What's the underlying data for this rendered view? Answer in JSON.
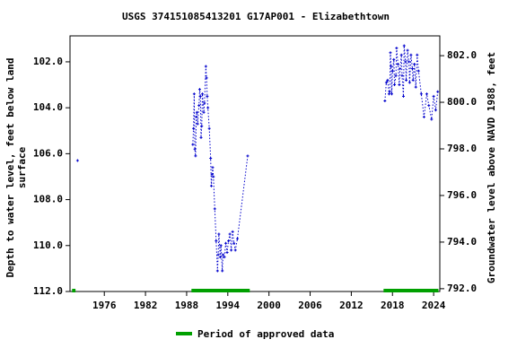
{
  "chart_data": {
    "type": "line",
    "title": "USGS 374151085413201 G17AP001 - Elizabethtown",
    "ylabel": [
      "Depth to water level, feet below land",
      "surface"
    ],
    "y2label": "Groundwater level above NAVD 1988, feet",
    "xlim": [
      1971,
      2024.9
    ],
    "xticks": [
      1976,
      1982,
      1988,
      1994,
      2000,
      2006,
      2012,
      2018,
      2024
    ],
    "ylim": [
      100.87,
      112
    ],
    "y_inverted": true,
    "yticks": [
      {
        "value": 102,
        "label": "102.0"
      },
      {
        "value": 104,
        "label": "104.0"
      },
      {
        "value": 106,
        "label": "106.0"
      },
      {
        "value": 108,
        "label": "108.0"
      },
      {
        "value": 110,
        "label": "110.0"
      },
      {
        "value": 112,
        "label": "112.0"
      }
    ],
    "y2lim": [
      791.88,
      802.85
    ],
    "y2ticks": [
      {
        "value": 792,
        "label": "792.0"
      },
      {
        "value": 794,
        "label": "794.0"
      },
      {
        "value": 796,
        "label": "796.0"
      },
      {
        "value": 798,
        "label": "798.0"
      },
      {
        "value": 800,
        "label": "800.0"
      },
      {
        "value": 802,
        "label": "802.0"
      }
    ],
    "grid": false,
    "series": [
      {
        "color": "#0000cc",
        "x": [
          1972.1,
          1980,
          1988.9,
          1989.0,
          1989.1,
          1989.2,
          1989.3,
          1989.4,
          1989.5,
          1989.6,
          1989.8,
          1989.9,
          1990.0,
          1990.1,
          1990.2,
          1990.3,
          1990.5,
          1990.6,
          1990.8,
          1990.9,
          1991.0,
          1991.1,
          1991.3,
          1991.5,
          1991.6,
          1991.7,
          1991.8,
          1991.9,
          1992.1,
          1992.3,
          1992.5,
          1992.6,
          1992.7,
          1992.9,
          1993.0,
          1993.2,
          1993.3,
          1993.5,
          1993.7,
          1993.9,
          1994.1,
          1994.3,
          1994.5,
          1994.7,
          1994.9,
          1995.1,
          1995.4,
          1996.9,
          2005,
          2016.9,
          2017.1,
          2017.3,
          2017.5,
          2017.6,
          2017.7,
          2017.8,
          2017.9,
          2018.0,
          2018.2,
          2018.3,
          2018.5,
          2018.6,
          2018.8,
          2019.0,
          2019.1,
          2019.3,
          2019.4,
          2019.6,
          2019.7,
          2019.9,
          2020.0,
          2020.2,
          2020.4,
          2020.5,
          2020.7,
          2020.9,
          2021.0,
          2021.2,
          2021.4,
          2021.6,
          2021.8,
          2022.2,
          2022.6,
          2023.0,
          2023.3,
          2023.7,
          2024.0,
          2024.3,
          2024.6
        ],
        "values": [
          106.3,
          null,
          105.6,
          104.9,
          103.4,
          105.8,
          106.1,
          104.4,
          104.2,
          104.7,
          103.9,
          103.2,
          103.5,
          105.3,
          104.8,
          103.4,
          104.2,
          103.8,
          102.2,
          102.7,
          103.5,
          104.0,
          104.9,
          106.2,
          107.4,
          106.9,
          106.6,
          107.0,
          108.4,
          109.8,
          111.1,
          110.4,
          109.5,
          110.5,
          110.0,
          111.1,
          110.4,
          110.5,
          109.9,
          110.3,
          109.8,
          109.5,
          110.2,
          109.4,
          109.9,
          110.2,
          109.7,
          106.1,
          null,
          103.7,
          102.9,
          102.8,
          103.4,
          103.3,
          101.6,
          102.2,
          103.4,
          102.4,
          101.9,
          103.0,
          102.6,
          101.4,
          102.1,
          103.0,
          102.3,
          101.7,
          102.6,
          103.5,
          101.3,
          102.0,
          102.8,
          101.5,
          102.0,
          102.9,
          101.7,
          102.3,
          102.8,
          102.1,
          103.1,
          101.7,
          102.4,
          103.4,
          104.4,
          103.4,
          103.9,
          104.5,
          103.5,
          104.1,
          103.3
        ]
      }
    ],
    "approved": {
      "name": "Period of approved data",
      "color": "#00a000",
      "periods": [
        [
          1971.3,
          1971.8
        ],
        [
          1988.7,
          1997.2
        ],
        [
          2016.7,
          2024.7
        ]
      ]
    }
  }
}
